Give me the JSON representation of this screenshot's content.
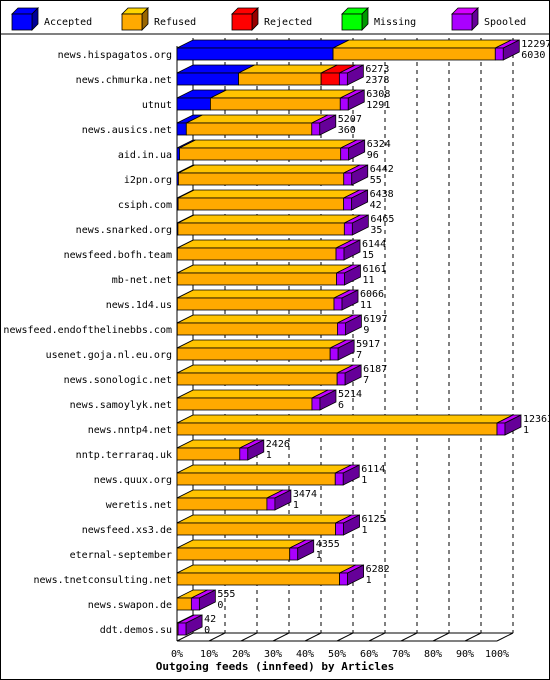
{
  "chart_data": {
    "type": "bar",
    "orientation": "horizontal",
    "stacked": true,
    "three_d": true,
    "title": "",
    "xlabel": "Outgoing feeds (innfeed) by Articles",
    "ylabel": "",
    "xlim": [
      0,
      100
    ],
    "x_unit": "%",
    "grid": true,
    "legend_position": "top",
    "x_tick_labels": [
      "0%",
      "10%",
      "20%",
      "30%",
      "40%",
      "50%",
      "60%",
      "70%",
      "80%",
      "90%",
      "100%"
    ],
    "legend": [
      {
        "name": "Accepted",
        "color": "#0000ff"
      },
      {
        "name": "Refused",
        "color": "#ffaa00"
      },
      {
        "name": "Rejected",
        "color": "#ff0000"
      },
      {
        "name": "Missing",
        "color": "#00ff00"
      },
      {
        "name": "Spooled",
        "color": "#aa00ff"
      }
    ],
    "rows": [
      {
        "label": "news.hispagatos.org",
        "offered": "12297",
        "accepted": "6030",
        "segments": {
          "accepted": 6030,
          "refused": 6267,
          "rejected": 0,
          "missing": 0,
          "spooled": 0
        }
      },
      {
        "label": "news.chmurka.net",
        "offered": "6273",
        "accepted": "2378",
        "segments": {
          "accepted": 2378,
          "refused": 3190,
          "rejected": 705,
          "missing": 0,
          "spooled": 0
        }
      },
      {
        "label": "utnut",
        "offered": "6308",
        "accepted": "1291",
        "segments": {
          "accepted": 1291,
          "refused": 5017,
          "rejected": 0,
          "missing": 0,
          "spooled": 0
        }
      },
      {
        "label": "news.ausics.net",
        "offered": "5207",
        "accepted": "360",
        "segments": {
          "accepted": 360,
          "refused": 4847,
          "rejected": 0,
          "missing": 0,
          "spooled": 0
        }
      },
      {
        "label": "aid.in.ua",
        "offered": "6324",
        "accepted": "96",
        "segments": {
          "accepted": 96,
          "refused": 6228,
          "rejected": 0,
          "missing": 0,
          "spooled": 0
        }
      },
      {
        "label": "i2pn.org",
        "offered": "6442",
        "accepted": "55",
        "segments": {
          "accepted": 55,
          "refused": 6387,
          "rejected": 0,
          "missing": 0,
          "spooled": 0
        }
      },
      {
        "label": "csiph.com",
        "offered": "6438",
        "accepted": "42",
        "segments": {
          "accepted": 42,
          "refused": 6396,
          "rejected": 0,
          "missing": 0,
          "spooled": 0
        }
      },
      {
        "label": "news.snarked.org",
        "offered": "6465",
        "accepted": "35",
        "segments": {
          "accepted": 35,
          "refused": 6430,
          "rejected": 0,
          "missing": 0,
          "spooled": 0
        }
      },
      {
        "label": "newsfeed.bofh.team",
        "offered": "6144",
        "accepted": "15",
        "segments": {
          "accepted": 15,
          "refused": 6129,
          "rejected": 0,
          "missing": 0,
          "spooled": 0
        }
      },
      {
        "label": "mb-net.net",
        "offered": "6161",
        "accepted": "11",
        "segments": {
          "accepted": 11,
          "refused": 6150,
          "rejected": 0,
          "missing": 0,
          "spooled": 0
        }
      },
      {
        "label": "news.1d4.us",
        "offered": "6066",
        "accepted": "11",
        "segments": {
          "accepted": 11,
          "refused": 6055,
          "rejected": 0,
          "missing": 0,
          "spooled": 0
        }
      },
      {
        "label": "newsfeed.endofthelinebbs.com",
        "offered": "6197",
        "accepted": "9",
        "segments": {
          "accepted": 9,
          "refused": 6188,
          "rejected": 0,
          "missing": 0,
          "spooled": 0
        }
      },
      {
        "label": "usenet.goja.nl.eu.org",
        "offered": "5917",
        "accepted": "7",
        "segments": {
          "accepted": 7,
          "refused": 5910,
          "rejected": 0,
          "missing": 0,
          "spooled": 0
        }
      },
      {
        "label": "news.sonologic.net",
        "offered": "6187",
        "accepted": "7",
        "segments": {
          "accepted": 7,
          "refused": 6180,
          "rejected": 0,
          "missing": 0,
          "spooled": 0
        }
      },
      {
        "label": "news.samoylyk.net",
        "offered": "5214",
        "accepted": "6",
        "segments": {
          "accepted": 6,
          "refused": 5208,
          "rejected": 0,
          "missing": 0,
          "spooled": 0
        }
      },
      {
        "label": "news.nntp4.net",
        "offered": "12363",
        "accepted": "1",
        "segments": {
          "accepted": 1,
          "refused": 12362,
          "rejected": 0,
          "missing": 0,
          "spooled": 0
        }
      },
      {
        "label": "nntp.terraraq.uk",
        "offered": "2426",
        "accepted": "1",
        "segments": {
          "accepted": 1,
          "refused": 2425,
          "rejected": 0,
          "missing": 0,
          "spooled": 0
        }
      },
      {
        "label": "news.quux.org",
        "offered": "6114",
        "accepted": "1",
        "segments": {
          "accepted": 1,
          "refused": 6113,
          "rejected": 0,
          "missing": 0,
          "spooled": 0
        }
      },
      {
        "label": "weretis.net",
        "offered": "3474",
        "accepted": "1",
        "segments": {
          "accepted": 1,
          "refused": 3473,
          "rejected": 0,
          "missing": 0,
          "spooled": 0
        }
      },
      {
        "label": "newsfeed.xs3.de",
        "offered": "6125",
        "accepted": "1",
        "segments": {
          "accepted": 1,
          "refused": 6124,
          "rejected": 0,
          "missing": 0,
          "spooled": 0
        }
      },
      {
        "label": "eternal-september",
        "offered": "4355",
        "accepted": "1",
        "segments": {
          "accepted": 1,
          "refused": 4354,
          "rejected": 0,
          "missing": 0,
          "spooled": 0
        }
      },
      {
        "label": "news.tnetconsulting.net",
        "offered": "6282",
        "accepted": "1",
        "segments": {
          "accepted": 1,
          "refused": 6281,
          "rejected": 0,
          "missing": 0,
          "spooled": 0
        }
      },
      {
        "label": "news.swapon.de",
        "offered": "555",
        "accepted": "0",
        "segments": {
          "accepted": 0,
          "refused": 555,
          "rejected": 0,
          "missing": 0,
          "spooled": 0
        }
      },
      {
        "label": "ddt.demos.su",
        "offered": "42",
        "accepted": "0",
        "segments": {
          "accepted": 0,
          "refused": 42,
          "rejected": 0,
          "missing": 0,
          "spooled": 0
        }
      }
    ]
  }
}
